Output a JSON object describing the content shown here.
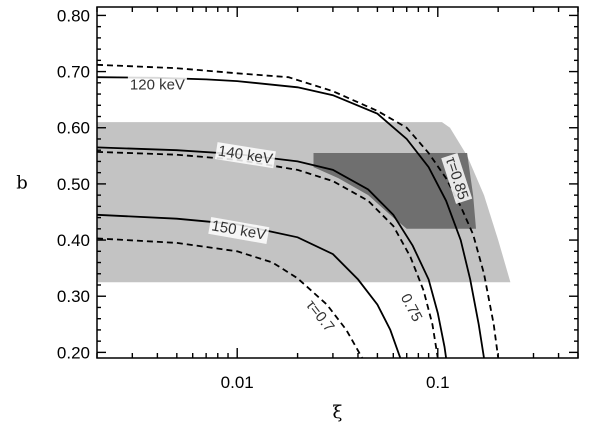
{
  "chart_data": {
    "type": "line",
    "title": "",
    "xlabel": "ξ",
    "ylabel": "b",
    "xscale": "log",
    "xlim": [
      0.002,
      0.5
    ],
    "ylim": [
      0.19,
      0.815
    ],
    "xticks": [
      {
        "value": 0.01,
        "label": "0.01"
      },
      {
        "value": 0.1,
        "label": "0.1"
      }
    ],
    "yticks": [
      {
        "value": 0.2,
        "label": "0.20"
      },
      {
        "value": 0.3,
        "label": "0.30"
      },
      {
        "value": 0.4,
        "label": "0.40"
      },
      {
        "value": 0.5,
        "label": "0.50"
      },
      {
        "value": 0.6,
        "label": "0.60"
      },
      {
        "value": 0.7,
        "label": "0.70"
      },
      {
        "value": 0.8,
        "label": "0.80"
      }
    ],
    "grid": false,
    "regions": [
      {
        "name": "",
        "color": "#c3c3c3",
        "polygon": [
          [
            0.002,
            0.325
          ],
          [
            0.23,
            0.325
          ],
          [
            0.2,
            0.4
          ],
          [
            0.17,
            0.48
          ],
          [
            0.14,
            0.55
          ],
          [
            0.115,
            0.6
          ],
          [
            0.105,
            0.61
          ],
          [
            0.002,
            0.61
          ]
        ]
      },
      {
        "name": "",
        "color": "#6f6f6f",
        "polygon": [
          [
            0.024,
            0.555
          ],
          [
            0.14,
            0.555
          ],
          [
            0.15,
            0.48
          ],
          [
            0.155,
            0.42
          ],
          [
            0.07,
            0.42
          ],
          [
            0.06,
            0.44
          ],
          [
            0.045,
            0.48
          ],
          [
            0.032,
            0.51
          ],
          [
            0.024,
            0.53
          ]
        ]
      }
    ],
    "series": [
      {
        "style": "solid",
        "points": [
          [
            0.002,
            0.69
          ],
          [
            0.004,
            0.689
          ],
          [
            0.007,
            0.686
          ],
          [
            0.01,
            0.683
          ],
          [
            0.02,
            0.672
          ],
          [
            0.03,
            0.658
          ],
          [
            0.05,
            0.625
          ],
          [
            0.07,
            0.58
          ],
          [
            0.09,
            0.53
          ],
          [
            0.11,
            0.47
          ],
          [
            0.13,
            0.4
          ],
          [
            0.145,
            0.33
          ],
          [
            0.16,
            0.25
          ],
          [
            0.17,
            0.19
          ]
        ]
      },
      {
        "style": "dashed",
        "points": [
          [
            0.002,
            0.712
          ],
          [
            0.005,
            0.706
          ],
          [
            0.01,
            0.697
          ],
          [
            0.018,
            0.69
          ],
          [
            0.03,
            0.665
          ],
          [
            0.05,
            0.63
          ],
          [
            0.07,
            0.6
          ],
          [
            0.09,
            0.555
          ],
          [
            0.11,
            0.51
          ],
          [
            0.13,
            0.46
          ],
          [
            0.15,
            0.41
          ],
          [
            0.17,
            0.34
          ],
          [
            0.19,
            0.25
          ],
          [
            0.2,
            0.19
          ]
        ]
      },
      {
        "style": "solid",
        "points": [
          [
            0.002,
            0.565
          ],
          [
            0.005,
            0.56
          ],
          [
            0.01,
            0.553
          ],
          [
            0.02,
            0.54
          ],
          [
            0.03,
            0.525
          ],
          [
            0.045,
            0.49
          ],
          [
            0.06,
            0.445
          ],
          [
            0.075,
            0.39
          ],
          [
            0.09,
            0.33
          ],
          [
            0.1,
            0.27
          ],
          [
            0.108,
            0.21
          ],
          [
            0.11,
            0.19
          ]
        ]
      },
      {
        "style": "dashed",
        "points": [
          [
            0.002,
            0.557
          ],
          [
            0.005,
            0.552
          ],
          [
            0.01,
            0.543
          ],
          [
            0.02,
            0.525
          ],
          [
            0.03,
            0.505
          ],
          [
            0.045,
            0.47
          ],
          [
            0.06,
            0.425
          ],
          [
            0.073,
            0.37
          ],
          [
            0.085,
            0.31
          ],
          [
            0.094,
            0.25
          ],
          [
            0.1,
            0.19
          ]
        ]
      },
      {
        "style": "solid",
        "points": [
          [
            0.002,
            0.445
          ],
          [
            0.005,
            0.438
          ],
          [
            0.01,
            0.428
          ],
          [
            0.02,
            0.405
          ],
          [
            0.03,
            0.375
          ],
          [
            0.04,
            0.33
          ],
          [
            0.05,
            0.285
          ],
          [
            0.058,
            0.24
          ],
          [
            0.065,
            0.19
          ]
        ]
      },
      {
        "style": "dashed",
        "points": [
          [
            0.002,
            0.403
          ],
          [
            0.005,
            0.395
          ],
          [
            0.01,
            0.38
          ],
          [
            0.015,
            0.36
          ],
          [
            0.02,
            0.332
          ],
          [
            0.028,
            0.285
          ],
          [
            0.035,
            0.24
          ],
          [
            0.042,
            0.19
          ]
        ]
      }
    ],
    "annotations": [
      {
        "text": "120  keV",
        "x": 0.004,
        "y": 0.677,
        "rotate": 0
      },
      {
        "text": "140  keV",
        "x": 0.011,
        "y": 0.552,
        "rotate": 9
      },
      {
        "text": "150  keV",
        "x": 0.0102,
        "y": 0.418,
        "rotate": 10
      },
      {
        "text": "τ=0.85",
        "x": 0.125,
        "y": 0.51,
        "rotate": 72
      },
      {
        "text": "τ=0.7",
        "x": 0.026,
        "y": 0.265,
        "rotate": 52
      },
      {
        "text": "0.75",
        "x": 0.074,
        "y": 0.28,
        "rotate": 62
      }
    ]
  }
}
